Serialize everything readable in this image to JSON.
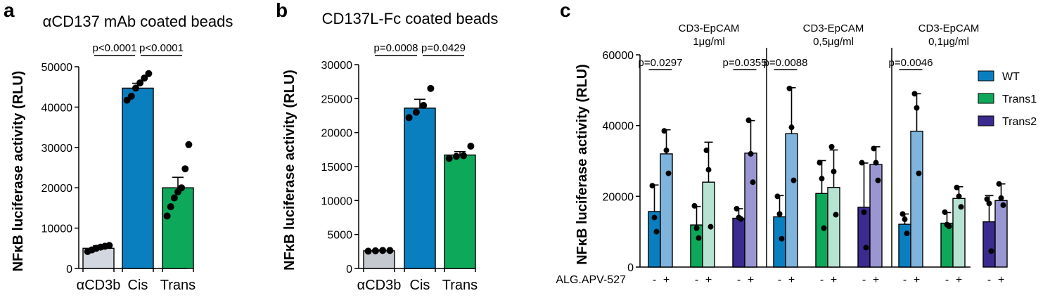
{
  "chart_data": [
    {
      "id": "a",
      "type": "bar",
      "panel_label": "a",
      "title": "αCD137 mAb coated beads",
      "ylabel": "NFκB luciferase activity (RLU)",
      "ylim": [
        0,
        50000
      ],
      "yticks": [
        0,
        10000,
        20000,
        30000,
        40000,
        50000
      ],
      "categories": [
        "αCD3b",
        "Cis",
        "Trans"
      ],
      "values": [
        5000,
        44700,
        20000
      ],
      "errors": [
        600,
        1200,
        2600
      ],
      "colors": [
        "#d3d7e0",
        "#0a7fc0",
        "#0ea85a"
      ],
      "points": [
        [
          4200,
          4600,
          5000,
          5300,
          5500,
          5700
        ],
        [
          41700,
          42700,
          44700,
          46000,
          47200,
          48300
        ],
        [
          13000,
          15300,
          17500,
          19000,
          20000,
          24700,
          30700
        ]
      ],
      "comparisons": [
        {
          "from": 0,
          "to": 1,
          "label": "p<0.0001"
        },
        {
          "from": 1,
          "to": 2,
          "label": "p<0.0001"
        }
      ]
    },
    {
      "id": "b",
      "type": "bar",
      "panel_label": "b",
      "title": "CD137L-Fc coated beads",
      "ylabel": "NFκB luciferase activity (RLU)",
      "ylim": [
        0,
        30000
      ],
      "yticks": [
        0,
        5000,
        10000,
        15000,
        20000,
        25000,
        30000
      ],
      "categories": [
        "αCD3b",
        "Cis",
        "Trans"
      ],
      "values": [
        2600,
        23600,
        16700
      ],
      "errors": [
        100,
        1300,
        500
      ],
      "colors": [
        "#c4c8cf",
        "#0a7fc0",
        "#0ea85a"
      ],
      "points": [
        [
          2550,
          2600,
          2650,
          2650
        ],
        [
          22200,
          23000,
          24000,
          26500
        ],
        [
          16200,
          16500,
          16600,
          18000
        ]
      ],
      "comparisons": [
        {
          "from": 0,
          "to": 1,
          "label": "p=0.0008"
        },
        {
          "from": 1,
          "to": 2,
          "label": "p=0.0429"
        }
      ]
    },
    {
      "id": "c",
      "type": "bar",
      "panel_label": "c",
      "ylabel": "NFκB luciferase activity (RLU)",
      "ylim": [
        0,
        60000
      ],
      "yticks": [
        0,
        20000,
        40000,
        60000
      ],
      "xlabel": "ALG.APV-527",
      "treatment_labels": [
        "-",
        "+"
      ],
      "conditions": [
        {
          "line1": "CD3-EpCAM",
          "line2": "1μg/ml"
        },
        {
          "line1": "CD3-EpCAM",
          "line2": "0,5μg/ml"
        },
        {
          "line1": "CD3-EpCAM",
          "line2": "0,1μg/ml"
        }
      ],
      "series": [
        {
          "name": "WT",
          "color": "#0a7fc0",
          "light": "#7fb4dd"
        },
        {
          "name": "Trans1",
          "color": "#0ea85a",
          "light": "#b7e4d2"
        },
        {
          "name": "Trans2",
          "color": "#3b2b8e",
          "light": "#9a96d2"
        }
      ],
      "bars": [
        [
          {
            "minus": {
              "mean": 15700,
              "sd": 7500,
              "points": [
                23000,
                14000,
                10000
              ]
            },
            "plus": {
              "mean": 32000,
              "sd": 6800,
              "points": [
                38500,
                33000,
                26500
              ]
            }
          },
          {
            "minus": {
              "mean": 11900,
              "sd": 5200,
              "points": [
                17300,
                11000,
                8200
              ]
            },
            "plus": {
              "mean": 24000,
              "sd": 11300,
              "points": [
                33000,
                27500,
                11400
              ]
            }
          },
          {
            "minus": {
              "mean": 13800,
              "sd": 2700,
              "points": [
                16500,
                14000,
                13600
              ]
            },
            "plus": {
              "mean": 32200,
              "sd": 9200,
              "points": [
                41500,
                32000,
                24000
              ]
            }
          }
        ],
        [
          {
            "minus": {
              "mean": 14200,
              "sd": 6000,
              "points": [
                20000,
                15000,
                8000
              ]
            },
            "plus": {
              "mean": 37700,
              "sd": 13000,
              "points": [
                50500,
                39500,
                24500
              ]
            }
          },
          {
            "minus": {
              "mean": 20800,
              "sd": 9300,
              "points": [
                29500,
                25000,
                11000
              ]
            },
            "plus": {
              "mean": 22500,
              "sd": 10600,
              "points": [
                34000,
                27000,
                14800
              ]
            }
          },
          {
            "minus": {
              "mean": 16900,
              "sd": 12500,
              "points": [
                29500,
                15500,
                5500
              ]
            },
            "plus": {
              "mean": 29000,
              "sd": 5000,
              "points": [
                33500,
                29500,
                24500
              ]
            }
          }
        ],
        [
          {
            "minus": {
              "mean": 12100,
              "sd": 2900,
              "points": [
                15000,
                13500,
                9500
              ]
            },
            "plus": {
              "mean": 38400,
              "sd": 10600,
              "points": [
                49000,
                45000,
                26500
              ]
            }
          },
          {
            "minus": {
              "mean": 12400,
              "sd": 3000,
              "points": [
                15500,
                12000,
                11500
              ]
            },
            "plus": {
              "mean": 19400,
              "sd": 3300,
              "points": [
                22500,
                20000,
                17000
              ]
            }
          },
          {
            "minus": {
              "mean": 12800,
              "sd": 7400,
              "points": [
                19200,
                18000,
                4500
              ]
            },
            "plus": {
              "mean": 18800,
              "sd": 4700,
              "points": [
                23500,
                19500,
                17500
              ]
            }
          }
        ]
      ],
      "comparisons": [
        {
          "condition": 0,
          "series": 0,
          "label": "p=0.0297"
        },
        {
          "condition": 0,
          "series": 2,
          "label": "p=0.0355"
        },
        {
          "condition": 1,
          "series": 0,
          "label": "p=0.0088"
        },
        {
          "condition": 2,
          "series": 0,
          "label": "p=0.0046"
        }
      ],
      "legend_position": "right"
    }
  ]
}
